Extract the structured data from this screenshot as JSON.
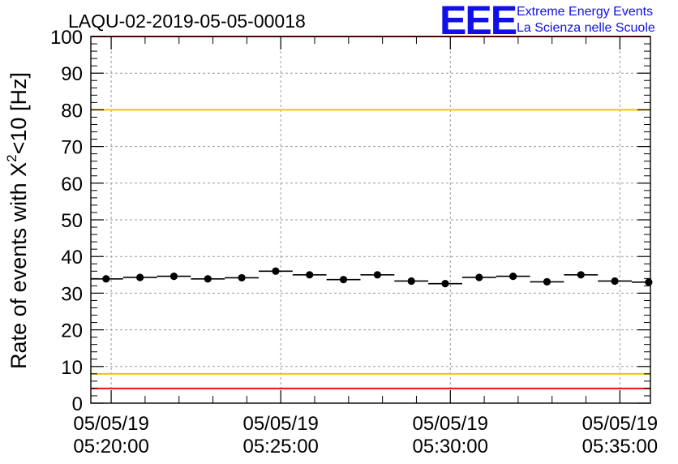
{
  "chart_data": {
    "type": "scatter",
    "title": "LAQU-02-2019-05-05-00018",
    "ylabel_main": "Rate of events with X",
    "ylabel_sup": "2",
    "ylabel_tail": "<10 [Hz]",
    "xlabel": "",
    "ylim": [
      0,
      100
    ],
    "yticks": [
      0,
      10,
      20,
      30,
      40,
      50,
      60,
      70,
      80,
      90,
      100
    ],
    "xlim_minutes": [
      -0.6,
      15.9
    ],
    "xticks": [
      {
        "minute": 0,
        "date": "05/05/19",
        "time": "05:20:00"
      },
      {
        "minute": 5,
        "date": "05/05/19",
        "time": "05:25:00"
      },
      {
        "minute": 10,
        "date": "05/05/19",
        "time": "05:30:00"
      },
      {
        "minute": 15,
        "date": "05/05/19",
        "time": "05:35:00"
      }
    ],
    "bin_width_minutes": 1,
    "points": [
      {
        "minute": -0.15,
        "value": 33.9
      },
      {
        "minute": 0.85,
        "value": 34.3
      },
      {
        "minute": 1.85,
        "value": 34.6
      },
      {
        "minute": 2.85,
        "value": 33.9
      },
      {
        "minute": 3.85,
        "value": 34.2
      },
      {
        "minute": 4.85,
        "value": 36.0
      },
      {
        "minute": 5.85,
        "value": 35.0
      },
      {
        "minute": 6.85,
        "value": 33.7
      },
      {
        "minute": 7.85,
        "value": 35.0
      },
      {
        "minute": 8.85,
        "value": 33.3
      },
      {
        "minute": 9.85,
        "value": 32.6
      },
      {
        "minute": 10.85,
        "value": 34.3
      },
      {
        "minute": 11.85,
        "value": 34.6
      },
      {
        "minute": 12.85,
        "value": 33.1
      },
      {
        "minute": 13.85,
        "value": 35.0
      },
      {
        "minute": 14.85,
        "value": 33.3
      },
      {
        "minute": 15.85,
        "value": 33.0
      }
    ],
    "reference_lines": [
      {
        "value": 4,
        "color": "#ee1111"
      },
      {
        "value": 8,
        "color": "#f2c400"
      },
      {
        "value": 80,
        "color": "#f2c400"
      },
      {
        "value": 100,
        "color": "#ee1111"
      }
    ],
    "grid": true
  },
  "logo": {
    "text": "EEE",
    "line1": "Extreme Energy Events",
    "line2": "La Scienza nelle Scuole",
    "color": "#1010e8"
  }
}
